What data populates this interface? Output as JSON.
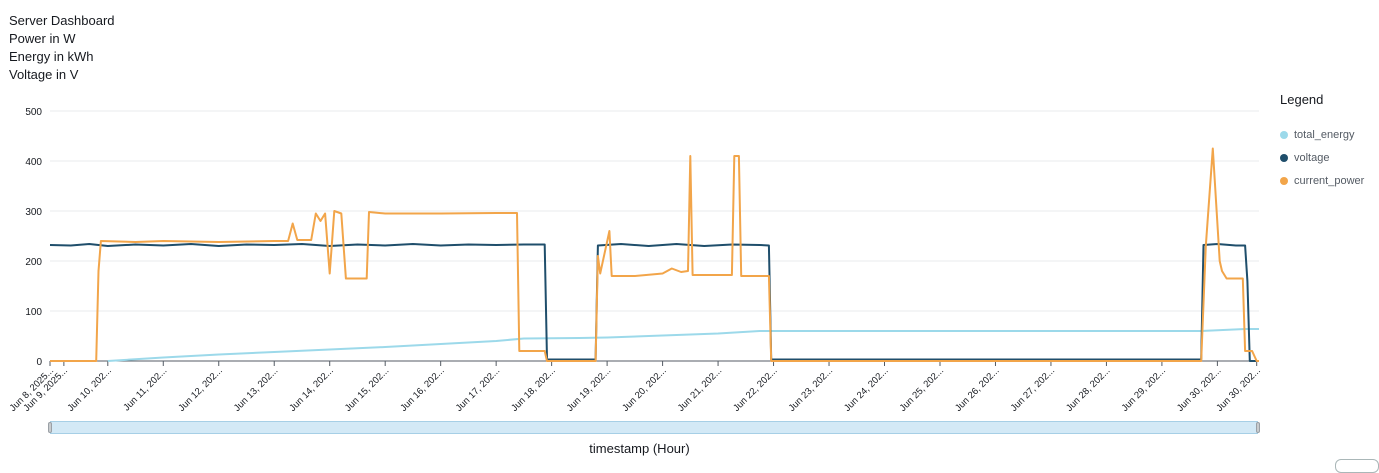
{
  "header": {
    "line1": "Server Dashboard",
    "line2": "Power in W",
    "line3": "Energy in kWh",
    "line4": "Voltage in V"
  },
  "legend": {
    "title": "Legend",
    "items": [
      {
        "label": "total_energy",
        "color": "#9cd9ea"
      },
      {
        "label": "voltage",
        "color": "#1f4e6b"
      },
      {
        "label": "current_power",
        "color": "#f2a54a"
      }
    ]
  },
  "chart_data": {
    "type": "line",
    "title": "",
    "xlabel": "timestamp (Hour)",
    "ylabel": "",
    "ylim": [
      0,
      500
    ],
    "y_ticks": [
      0,
      100,
      200,
      300,
      400,
      500
    ],
    "x_range": [
      "2025-06-08T23:00",
      "2025-06-30T18:00"
    ],
    "x_ticks": [
      {
        "label": "Jun 8, 2025...",
        "t": "2025-06-08T23:00"
      },
      {
        "label": "Jun 9, 2025...",
        "t": "2025-06-09T05:00"
      },
      {
        "label": "Jun 10, 202...",
        "t": "2025-06-10T00:00"
      },
      {
        "label": "Jun 11, 202...",
        "t": "2025-06-11T00:00"
      },
      {
        "label": "Jun 12, 202...",
        "t": "2025-06-12T00:00"
      },
      {
        "label": "Jun 13, 202...",
        "t": "2025-06-13T00:00"
      },
      {
        "label": "Jun 14, 202...",
        "t": "2025-06-14T00:00"
      },
      {
        "label": "Jun 15, 202...",
        "t": "2025-06-15T00:00"
      },
      {
        "label": "Jun 16, 202...",
        "t": "2025-06-16T00:00"
      },
      {
        "label": "Jun 17, 202...",
        "t": "2025-06-17T00:00"
      },
      {
        "label": "Jun 18, 202...",
        "t": "2025-06-18T00:00"
      },
      {
        "label": "Jun 19, 202...",
        "t": "2025-06-19T00:00"
      },
      {
        "label": "Jun 20, 202...",
        "t": "2025-06-20T00:00"
      },
      {
        "label": "Jun 21, 202...",
        "t": "2025-06-21T00:00"
      },
      {
        "label": "Jun 22, 202...",
        "t": "2025-06-22T00:00"
      },
      {
        "label": "Jun 23, 202...",
        "t": "2025-06-23T00:00"
      },
      {
        "label": "Jun 24, 202...",
        "t": "2025-06-24T00:00"
      },
      {
        "label": "Jun 25, 202...",
        "t": "2025-06-25T00:00"
      },
      {
        "label": "Jun 26, 202...",
        "t": "2025-06-26T00:00"
      },
      {
        "label": "Jun 27, 202...",
        "t": "2025-06-27T00:00"
      },
      {
        "label": "Jun 28, 202...",
        "t": "2025-06-28T00:00"
      },
      {
        "label": "Jun 29, 202...",
        "t": "2025-06-29T00:00"
      },
      {
        "label": "Jun 30, 202...",
        "t": "2025-06-30T00:00"
      },
      {
        "label": "Jun 30, 202...",
        "t": "2025-06-30T17:00"
      }
    ],
    "grid": true,
    "legend_position": "right",
    "series": [
      {
        "name": "total_energy",
        "color": "#9cd9ea",
        "points": [
          [
            "2025-06-10T00:00",
            0
          ],
          [
            "2025-06-11T00:00",
            7
          ],
          [
            "2025-06-12T00:00",
            13
          ],
          [
            "2025-06-13T00:00",
            18
          ],
          [
            "2025-06-14T00:00",
            23
          ],
          [
            "2025-06-15T00:00",
            28
          ],
          [
            "2025-06-16T00:00",
            34
          ],
          [
            "2025-06-17T00:00",
            40
          ],
          [
            "2025-06-17T12:00",
            45
          ],
          [
            "2025-06-18T12:00",
            46
          ],
          [
            "2025-06-19T00:00",
            47
          ],
          [
            "2025-06-20T00:00",
            51
          ],
          [
            "2025-06-21T00:00",
            55
          ],
          [
            "2025-06-21T18:00",
            60
          ],
          [
            "2025-06-22T12:00",
            60
          ],
          [
            "2025-06-29T17:00",
            60
          ],
          [
            "2025-06-30T12:00",
            64
          ],
          [
            "2025-06-30T18:00",
            64
          ]
        ]
      },
      {
        "name": "voltage",
        "color": "#1f4e6b",
        "points": [
          [
            "2025-06-08T23:00",
            232
          ],
          [
            "2025-06-09T08:00",
            231
          ],
          [
            "2025-06-09T16:00",
            234
          ],
          [
            "2025-06-10T00:00",
            230
          ],
          [
            "2025-06-10T12:00",
            233
          ],
          [
            "2025-06-11T00:00",
            231
          ],
          [
            "2025-06-11T12:00",
            234
          ],
          [
            "2025-06-12T00:00",
            230
          ],
          [
            "2025-06-12T12:00",
            233
          ],
          [
            "2025-06-13T00:00",
            232
          ],
          [
            "2025-06-13T12:00",
            234
          ],
          [
            "2025-06-14T00:00",
            230
          ],
          [
            "2025-06-14T12:00",
            233
          ],
          [
            "2025-06-15T00:00",
            231
          ],
          [
            "2025-06-15T12:00",
            234
          ],
          [
            "2025-06-16T00:00",
            231
          ],
          [
            "2025-06-16T12:00",
            233
          ],
          [
            "2025-06-17T00:00",
            232
          ],
          [
            "2025-06-17T12:00",
            233
          ],
          [
            "2025-06-17T21:00",
            233
          ],
          [
            "2025-06-17T22:00",
            3
          ],
          [
            "2025-06-18T19:00",
            3
          ],
          [
            "2025-06-18T20:00",
            231
          ],
          [
            "2025-06-19T06:00",
            234
          ],
          [
            "2025-06-19T18:00",
            230
          ],
          [
            "2025-06-20T06:00",
            234
          ],
          [
            "2025-06-20T18:00",
            230
          ],
          [
            "2025-06-21T06:00",
            233
          ],
          [
            "2025-06-21T18:00",
            232
          ],
          [
            "2025-06-21T22:00",
            231
          ],
          [
            "2025-06-21T23:00",
            3
          ],
          [
            "2025-06-29T17:00",
            3
          ],
          [
            "2025-06-29T18:00",
            232
          ],
          [
            "2025-06-30T00:00",
            234
          ],
          [
            "2025-06-30T08:00",
            231
          ],
          [
            "2025-06-30T12:00",
            231
          ],
          [
            "2025-06-30T13:00",
            160
          ],
          [
            "2025-06-30T14:00",
            0
          ],
          [
            "2025-06-30T18:00",
            0
          ]
        ]
      },
      {
        "name": "current_power",
        "color": "#f2a54a",
        "points": [
          [
            "2025-06-08T23:00",
            0
          ],
          [
            "2025-06-09T19:00",
            0
          ],
          [
            "2025-06-09T20:00",
            180
          ],
          [
            "2025-06-09T21:00",
            240
          ],
          [
            "2025-06-10T12:00",
            238
          ],
          [
            "2025-06-11T00:00",
            240
          ],
          [
            "2025-06-12T00:00",
            238
          ],
          [
            "2025-06-13T00:00",
            240
          ],
          [
            "2025-06-13T06:00",
            240
          ],
          [
            "2025-06-13T08:00",
            275
          ],
          [
            "2025-06-13T10:00",
            242
          ],
          [
            "2025-06-13T16:00",
            242
          ],
          [
            "2025-06-13T18:00",
            295
          ],
          [
            "2025-06-13T20:00",
            280
          ],
          [
            "2025-06-13T22:00",
            295
          ],
          [
            "2025-06-14T00:00",
            175
          ],
          [
            "2025-06-14T02:00",
            300
          ],
          [
            "2025-06-14T05:00",
            295
          ],
          [
            "2025-06-14T07:00",
            165
          ],
          [
            "2025-06-14T16:00",
            165
          ],
          [
            "2025-06-14T17:00",
            298
          ],
          [
            "2025-06-15T00:00",
            295
          ],
          [
            "2025-06-16T00:00",
            295
          ],
          [
            "2025-06-17T00:00",
            296
          ],
          [
            "2025-06-17T09:00",
            296
          ],
          [
            "2025-06-17T10:00",
            20
          ],
          [
            "2025-06-17T21:00",
            20
          ],
          [
            "2025-06-17T22:00",
            0
          ],
          [
            "2025-06-18T19:00",
            0
          ],
          [
            "2025-06-18T20:00",
            210
          ],
          [
            "2025-06-18T21:00",
            175
          ],
          [
            "2025-06-19T01:00",
            260
          ],
          [
            "2025-06-19T02:00",
            170
          ],
          [
            "2025-06-19T12:00",
            170
          ],
          [
            "2025-06-20T00:00",
            175
          ],
          [
            "2025-06-20T04:00",
            185
          ],
          [
            "2025-06-20T08:00",
            178
          ],
          [
            "2025-06-20T11:00",
            180
          ],
          [
            "2025-06-20T12:00",
            410
          ],
          [
            "2025-06-20T13:00",
            172
          ],
          [
            "2025-06-21T06:00",
            172
          ],
          [
            "2025-06-21T07:00",
            410
          ],
          [
            "2025-06-21T09:00",
            410
          ],
          [
            "2025-06-21T10:00",
            170
          ],
          [
            "2025-06-21T22:00",
            170
          ],
          [
            "2025-06-21T23:00",
            0
          ],
          [
            "2025-06-29T17:00",
            0
          ],
          [
            "2025-06-29T19:00",
            230
          ],
          [
            "2025-06-29T22:00",
            425
          ],
          [
            "2025-06-30T01:00",
            200
          ],
          [
            "2025-06-30T02:00",
            180
          ],
          [
            "2025-06-30T04:00",
            165
          ],
          [
            "2025-06-30T11:00",
            165
          ],
          [
            "2025-06-30T12:00",
            20
          ],
          [
            "2025-06-30T15:00",
            20
          ],
          [
            "2025-06-30T17:00",
            0
          ],
          [
            "2025-06-30T18:00",
            0
          ]
        ]
      }
    ]
  }
}
